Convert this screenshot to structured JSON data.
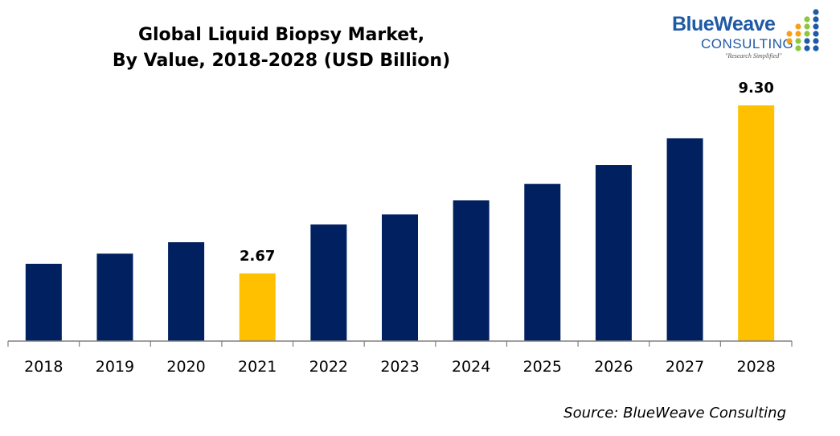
{
  "title_lines": [
    "Global Liquid Biopsy Market,",
    "By Value, 2018-2028 (USD Billion)"
  ],
  "logo": {
    "brand": "BlueWeave",
    "consulting": "CONSULTING",
    "tagline": "\"Research Simplified\"",
    "colors": {
      "blue": "#1f5aa6",
      "green": "#8dc63f",
      "orange": "#f7a11a"
    }
  },
  "source": "Source: BlueWeave Consulting",
  "colors": {
    "default_bar": "#002060",
    "highlight_bar": "#ffc000"
  },
  "chart_data": {
    "type": "bar",
    "categories": [
      "2018",
      "2019",
      "2020",
      "2021",
      "2022",
      "2023",
      "2024",
      "2025",
      "2026",
      "2027",
      "2028"
    ],
    "values": [
      3.05,
      3.45,
      3.9,
      2.67,
      4.6,
      5.0,
      5.55,
      6.2,
      6.95,
      8.0,
      9.3
    ],
    "data_labels": {
      "3": "2.67",
      "10": "9.30"
    },
    "highlight_indices": [
      3,
      10
    ],
    "ylim": [
      0,
      9.3
    ],
    "grid": false,
    "legend": "none"
  }
}
